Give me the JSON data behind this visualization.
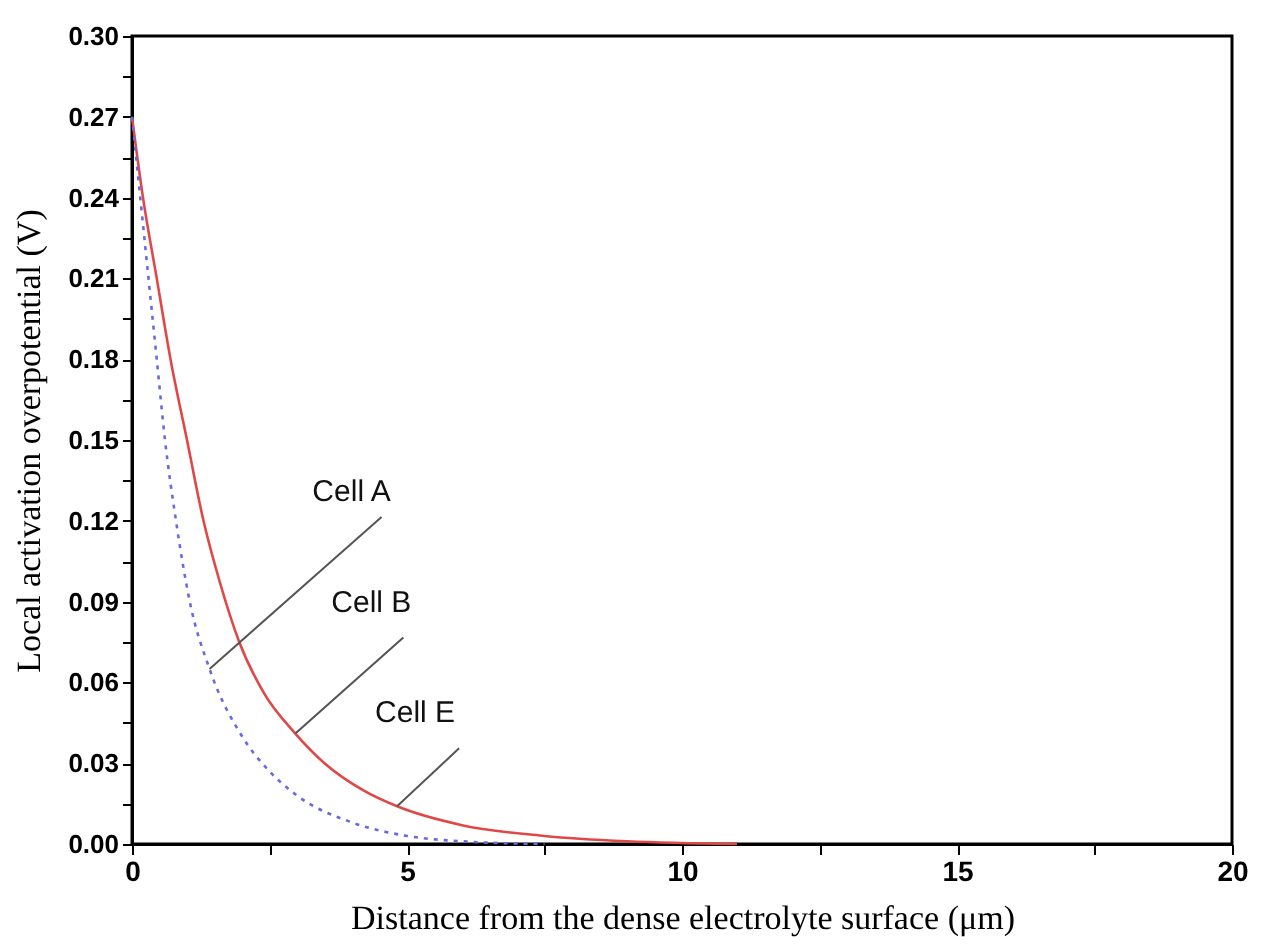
{
  "chart_data": {
    "type": "line",
    "xlabel": "Distance from the dense electrolyte surface (μm)",
    "ylabel": "Local activation overpotential (V)",
    "xlim": [
      0,
      20
    ],
    "ylim": [
      0,
      0.3
    ],
    "xticks": [
      0,
      {
        "value": 2.5,
        "label": null
      },
      5,
      {
        "value": 7.5,
        "label": null
      },
      10,
      {
        "value": 12.5,
        "label": null
      },
      15,
      {
        "value": 17.5,
        "label": null
      },
      20
    ],
    "yticks": [
      {
        "value": 0,
        "label": "0.00"
      },
      {
        "value": 0.015,
        "label": null
      },
      {
        "value": 0.03,
        "label": "0.03"
      },
      {
        "value": 0.045,
        "label": null
      },
      {
        "value": 0.06,
        "label": "0.06"
      },
      {
        "value": 0.075,
        "label": null
      },
      {
        "value": 0.09,
        "label": "0.09"
      },
      {
        "value": 0.105,
        "label": null
      },
      {
        "value": 0.12,
        "label": "0.12"
      },
      {
        "value": 0.135,
        "label": null
      },
      {
        "value": 0.15,
        "label": "0.15"
      },
      {
        "value": 0.165,
        "label": null
      },
      {
        "value": 0.18,
        "label": "0.18"
      },
      {
        "value": 0.195,
        "label": null
      },
      {
        "value": 0.21,
        "label": "0.21"
      },
      {
        "value": 0.225,
        "label": null
      },
      {
        "value": 0.24,
        "label": "0.24"
      },
      {
        "value": 0.255,
        "label": null
      },
      {
        "value": 0.27,
        "label": "0.27"
      },
      {
        "value": 0.285,
        "label": null
      },
      {
        "value": 0.3,
        "label": "0.30"
      }
    ],
    "grid": false,
    "marker": "none",
    "series": [
      {
        "color": "#e04848",
        "line_style": "solid",
        "x": [
          0,
          0.2,
          0.45,
          0.7,
          1.0,
          1.3,
          1.6,
          1.95,
          2.4,
          2.97,
          3.5,
          4.2,
          4.82,
          6,
          7.5,
          9,
          11
        ],
        "values": [
          0.27,
          0.24,
          0.21,
          0.18,
          0.15,
          0.12,
          0.097,
          0.075,
          0.056,
          0.041,
          0.03,
          0.02,
          0.014,
          0.007,
          0.003,
          0.001,
          0
        ]
      },
      {
        "color": "#6a6ae0",
        "line_style": "dotted",
        "x": [
          0,
          0.15,
          0.3,
          0.45,
          0.6,
          0.8,
          1.05,
          1.41,
          2,
          2.5,
          3,
          4,
          5,
          6,
          7.5
        ],
        "values": [
          0.27,
          0.24,
          0.21,
          0.18,
          0.15,
          0.12,
          0.09,
          0.065,
          0.04,
          0.027,
          0.018,
          0.008,
          0.003,
          0.001,
          0
        ]
      }
    ],
    "annotations": [
      {
        "text": "Cell A",
        "x": 1.41,
        "y": 0.065
      },
      {
        "text": "Cell B",
        "x": 2.97,
        "y": 0.041
      },
      {
        "text": "Cell E",
        "x": 4.82,
        "y": 0.014
      }
    ]
  }
}
